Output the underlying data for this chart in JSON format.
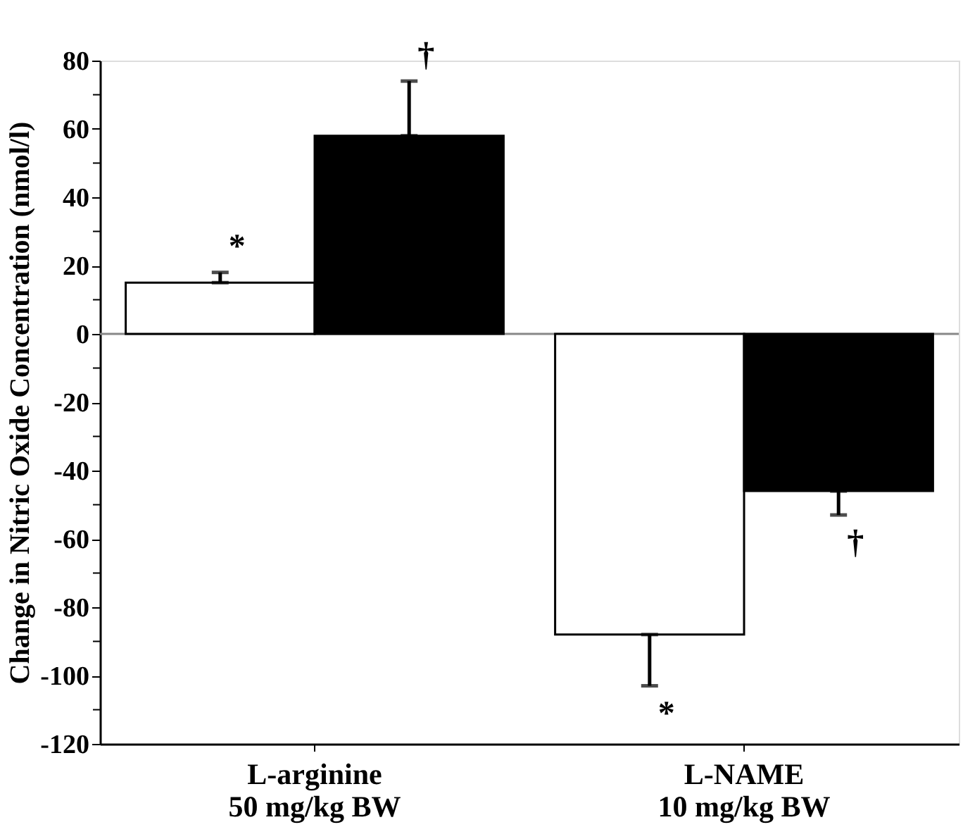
{
  "chart_data": {
    "type": "bar",
    "ylabel": "Change in Nitric Oxide Concentration (nmol/l)",
    "categories": [
      "L-arginine\n50 mg/kg BW",
      "L-NAME\n10 mg/kg BW"
    ],
    "series": [
      {
        "color": "#ffffff",
        "values": [
          15,
          -88
        ],
        "errors": [
          [
            15,
            18
          ],
          [
            -103,
            -88
          ]
        ]
      },
      {
        "color": "#000000",
        "values": [
          58,
          -46
        ],
        "errors": [
          [
            58,
            74
          ],
          [
            -53,
            -46
          ]
        ]
      }
    ],
    "ylim": [
      -120,
      80
    ],
    "yticks": [
      -120,
      {
        "value": -110,
        "label": null
      },
      -100,
      {
        "value": -90,
        "label": null
      },
      -80,
      {
        "value": -70,
        "label": null
      },
      -60,
      {
        "value": -50,
        "label": null
      },
      -40,
      {
        "value": -30,
        "label": null
      },
      -20,
      {
        "value": -10,
        "label": null
      },
      0,
      {
        "value": 10,
        "label": null
      },
      20,
      {
        "value": 30,
        "label": null
      },
      40,
      {
        "value": 50,
        "label": null
      },
      60,
      {
        "value": 70,
        "label": null
      },
      80
    ],
    "ref_lines": [
      {
        "axis": "y",
        "value": 0,
        "color": "#888888"
      }
    ],
    "annotations": [
      "*",
      "†",
      "*",
      "†"
    ],
    "grid": false,
    "legend": false
  }
}
